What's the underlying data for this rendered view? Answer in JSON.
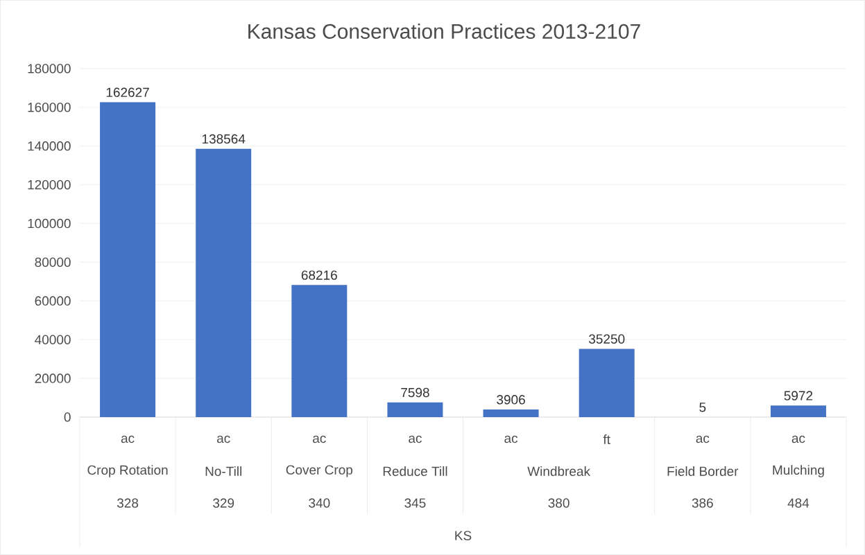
{
  "chart_data": {
    "type": "bar",
    "title": "Kansas Conservation Practices 2013-2107",
    "categories": [
      "ac",
      "ac",
      "ac",
      "ac",
      "ac",
      "ft",
      "ac",
      "ac"
    ],
    "values": [
      162627,
      138564,
      68216,
      7598,
      3906,
      35250,
      5,
      5972
    ],
    "color": "#4472c4",
    "data_labels": true,
    "grid": "y",
    "ylim": [
      0,
      180000
    ],
    "yticks": [
      0,
      20000,
      40000,
      60000,
      80000,
      100000,
      120000,
      140000,
      160000,
      180000
    ],
    "annotations": [
      "Crop Rotation",
      "No-Till",
      "Cover Crop",
      "Reduce Till",
      "Windbreak",
      "Field Border",
      "Mulching",
      "328",
      "329",
      "340",
      "345",
      "380",
      "386",
      "484",
      "KS"
    ]
  }
}
